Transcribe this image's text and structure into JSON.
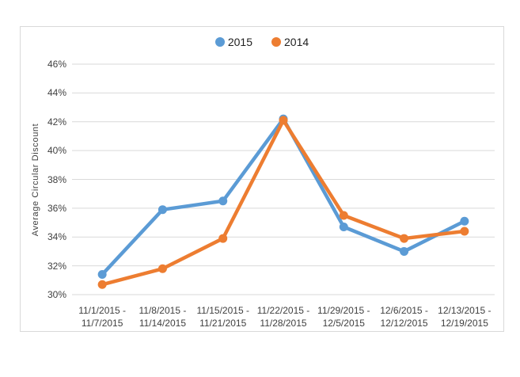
{
  "chart_data": {
    "type": "line",
    "title": "",
    "xlabel": "",
    "ylabel": "Average Circular Discount",
    "ylim": [
      30,
      46
    ],
    "ytick_step": 2,
    "ytick_suffix": "%",
    "grid": true,
    "legend_position": "top-center",
    "categories": [
      "11/1/2015 - 11/7/2015",
      "11/8/2015 - 11/14/2015",
      "11/15/2015 - 11/21/2015",
      "11/22/2015 - 11/28/2015",
      "11/29/2015 - 12/5/2015",
      "12/6/2015 - 12/12/2015",
      "12/13/2015 - 12/19/2015"
    ],
    "series": [
      {
        "name": "2015",
        "color": "#5B9BD5",
        "values": [
          31.4,
          35.9,
          36.5,
          42.2,
          34.7,
          33.0,
          35.1
        ]
      },
      {
        "name": "2014",
        "color": "#ED7D31",
        "values": [
          30.7,
          31.8,
          33.9,
          42.1,
          35.5,
          33.9,
          34.4
        ]
      }
    ],
    "colors": {
      "gridline": "#D9D9D9",
      "frame_border": "#D9D9D9",
      "axis_text": "#404040",
      "legend_text": "#1F1F1F",
      "background": "#FFFFFF"
    }
  }
}
